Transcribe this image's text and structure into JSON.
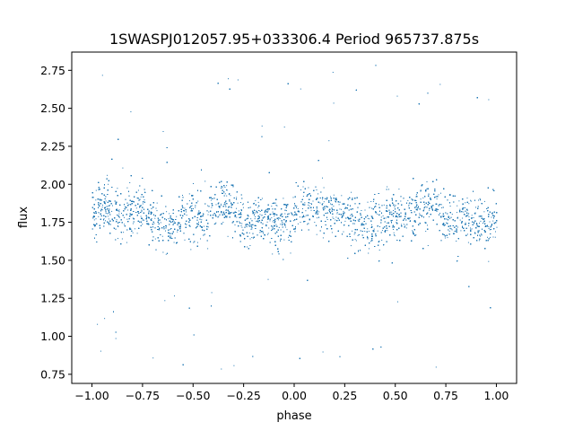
{
  "chart_data": {
    "type": "scatter",
    "title": "1SWASPJ012057.95+033306.4 Period 965737.875s",
    "xlabel": "phase",
    "ylabel": "flux",
    "xlim": [
      -1.1,
      1.1
    ],
    "ylim": [
      0.69,
      2.87
    ],
    "x_ticks": [
      -1.0,
      -0.75,
      -0.5,
      -0.25,
      0.0,
      0.25,
      0.5,
      0.75,
      1.0
    ],
    "x_tick_labels": [
      "−1.00",
      "−0.75",
      "−0.50",
      "−0.25",
      "0.00",
      "0.25",
      "0.50",
      "0.75",
      "1.00"
    ],
    "y_ticks": [
      0.75,
      1.0,
      1.25,
      1.5,
      1.75,
      2.0,
      2.25,
      2.5,
      2.75
    ],
    "y_tick_labels": [
      "0.75",
      "1.00",
      "1.25",
      "1.50",
      "1.75",
      "2.00",
      "2.25",
      "2.50",
      "2.75"
    ],
    "grid": false,
    "legend": "none",
    "marker_color": "#1f77b4",
    "phase_range": [
      -1.0,
      1.0
    ],
    "typical_flux_range": [
      1.55,
      2.05
    ],
    "outlier_flux_range": [
      0.78,
      2.8
    ],
    "points": [
      [
        -0.99,
        1.84
      ],
      [
        -0.97,
        1.79
      ],
      [
        -0.95,
        2.72
      ],
      [
        -0.94,
        1.12
      ],
      [
        -0.92,
        1.86
      ],
      [
        -0.88,
        1.77
      ],
      [
        -0.85,
        2.11
      ],
      [
        -0.83,
        1.62
      ],
      [
        -0.81,
        2.48
      ],
      [
        -0.79,
        1.71
      ],
      [
        -0.76,
        1.92
      ],
      [
        -0.72,
        1.74
      ],
      [
        -0.7,
        0.86
      ],
      [
        -0.68,
        1.88
      ],
      [
        -0.65,
        2.35
      ],
      [
        -0.62,
        1.81
      ],
      [
        -0.58,
        1.69
      ],
      [
        -0.55,
        1.83
      ],
      [
        -0.52,
        1.94
      ],
      [
        -0.5,
        1.62
      ],
      [
        -0.46,
        1.77
      ],
      [
        -0.43,
        1.58
      ],
      [
        -0.41,
        1.29
      ],
      [
        -0.37,
        1.85
      ],
      [
        -0.33,
        1.66
      ],
      [
        -0.3,
        0.81
      ],
      [
        -0.28,
        2.69
      ],
      [
        -0.26,
        1.72
      ],
      [
        -0.22,
        1.6
      ],
      [
        -0.19,
        1.76
      ],
      [
        -0.16,
        1.91
      ],
      [
        -0.13,
        1.68
      ],
      [
        -0.1,
        1.81
      ],
      [
        -0.07,
        1.74
      ],
      [
        -0.05,
        2.38
      ],
      [
        -0.02,
        1.55
      ],
      [
        0.01,
        1.86
      ],
      [
        0.03,
        2.63
      ],
      [
        0.05,
        1.79
      ],
      [
        0.08,
        1.93
      ],
      [
        0.11,
        1.84
      ],
      [
        0.14,
        0.9
      ],
      [
        0.17,
        2.29
      ],
      [
        0.19,
        2.74
      ],
      [
        0.22,
        1.87
      ],
      [
        0.25,
        1.76
      ],
      [
        0.28,
        1.95
      ],
      [
        0.3,
        1.64
      ],
      [
        0.33,
        1.83
      ],
      [
        0.36,
        1.71
      ],
      [
        0.39,
        1.89
      ],
      [
        0.42,
        1.57
      ],
      [
        0.45,
        1.78
      ],
      [
        0.48,
        1.82
      ],
      [
        0.51,
        1.23
      ],
      [
        0.54,
        1.74
      ],
      [
        0.57,
        1.88
      ],
      [
        0.6,
        1.67
      ],
      [
        0.63,
        1.79
      ],
      [
        0.66,
        1.6
      ],
      [
        0.68,
        1.84
      ],
      [
        0.7,
        0.8
      ],
      [
        0.72,
        2.66
      ],
      [
        0.74,
        1.73
      ],
      [
        0.77,
        1.86
      ],
      [
        0.8,
        1.69
      ],
      [
        0.83,
        1.78
      ],
      [
        0.86,
        1.62
      ],
      [
        0.89,
        1.81
      ],
      [
        0.92,
        1.76
      ],
      [
        0.94,
        1.89
      ],
      [
        0.96,
        2.56
      ],
      [
        0.98,
        1.8
      ],
      [
        1.0,
        1.72
      ]
    ]
  }
}
